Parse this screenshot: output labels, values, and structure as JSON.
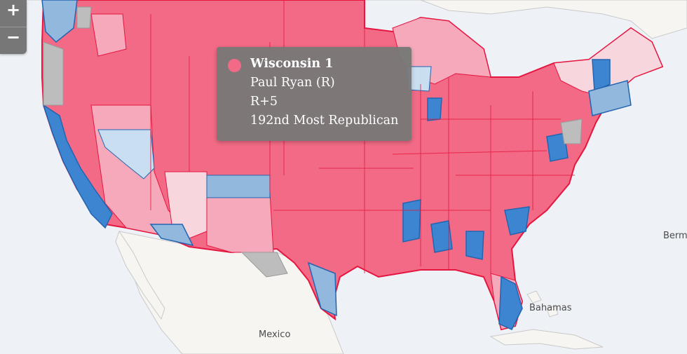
{
  "controls": {
    "zoom_in": "+",
    "zoom_out": "−"
  },
  "tooltip": {
    "title": "Wisconsin 1",
    "representative": "Paul Ryan (R)",
    "lean": "R+5",
    "rank": "192nd Most Republican",
    "marker_color": "#f26a85"
  },
  "labels": {
    "mexico": "Mexico",
    "bahamas": "Bahamas",
    "bermuda": "Berm"
  },
  "colors": {
    "strong_republican": "#f26a85",
    "lean_republican": "#f5a9ba",
    "slight_republican": "#f8d6de",
    "strong_democrat": "#3d85d1",
    "lean_democrat": "#92b8de",
    "slight_democrat": "#c9def0",
    "no_data": "#bdbdbd",
    "water": "#eef2f7",
    "land": "#f6f5f2"
  }
}
